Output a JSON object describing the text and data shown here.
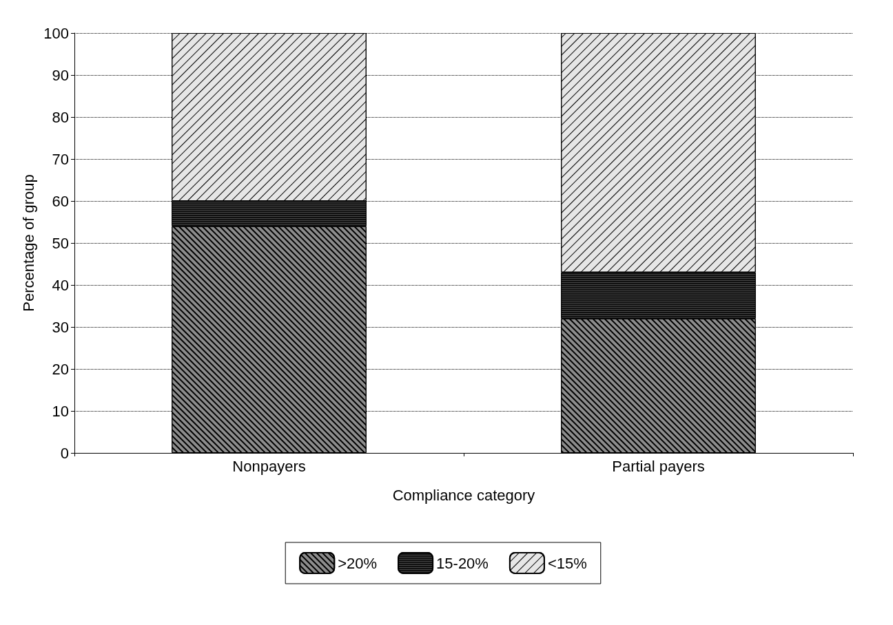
{
  "chart_data": {
    "type": "bar",
    "stacked": true,
    "xlabel": "Compliance category",
    "ylabel": "Percentage of group",
    "categories": [
      "Nonpayers",
      "Partial payers"
    ],
    "series": [
      {
        "name": ">20%",
        "color": "#8c8c8c",
        "values": [
          54,
          32
        ]
      },
      {
        "name": "15-20%",
        "color": "#111111",
        "values": [
          6,
          11
        ]
      },
      {
        "name": "<15%",
        "color": "#e6e6e6",
        "values": [
          40,
          57
        ]
      }
    ],
    "ylim": [
      0,
      100
    ],
    "yticks": [
      0,
      10,
      20,
      30,
      40,
      50,
      60,
      70,
      80,
      90,
      100
    ],
    "grid": "y",
    "legend": "bottom"
  }
}
